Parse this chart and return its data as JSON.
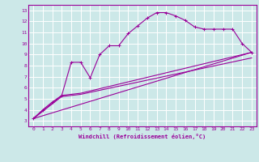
{
  "xlabel": "Windchill (Refroidissement éolien,°C)",
  "bg_color": "#cce8e8",
  "line_color": "#990099",
  "grid_color": "#ffffff",
  "xlim": [
    -0.5,
    23.5
  ],
  "ylim": [
    2.5,
    13.5
  ],
  "xticks": [
    0,
    1,
    2,
    3,
    4,
    5,
    6,
    7,
    8,
    9,
    10,
    11,
    12,
    13,
    14,
    15,
    16,
    17,
    18,
    19,
    20,
    21,
    22,
    23
  ],
  "yticks": [
    3,
    4,
    5,
    6,
    7,
    8,
    9,
    10,
    11,
    12,
    13
  ],
  "curve1_x": [
    0,
    1,
    2,
    3,
    4,
    5,
    6,
    7,
    8,
    9,
    10,
    11,
    12,
    13,
    14,
    15,
    16,
    17,
    18,
    19,
    20,
    21,
    22,
    23
  ],
  "curve1_y": [
    3.2,
    4.0,
    4.7,
    5.3,
    8.3,
    8.3,
    6.9,
    9.0,
    9.8,
    9.8,
    10.9,
    11.6,
    12.3,
    12.8,
    12.8,
    12.5,
    12.1,
    11.5,
    11.3,
    11.3,
    11.3,
    11.3,
    10.0,
    9.2
  ],
  "curve2_x": [
    0,
    23
  ],
  "curve2_y": [
    3.2,
    9.2
  ],
  "curve3_x": [
    0,
    3,
    5,
    23
  ],
  "curve3_y": [
    3.2,
    5.3,
    5.5,
    9.2
  ],
  "curve4_x": [
    0,
    3,
    5,
    23
  ],
  "curve4_y": [
    3.2,
    5.2,
    5.4,
    8.7
  ]
}
